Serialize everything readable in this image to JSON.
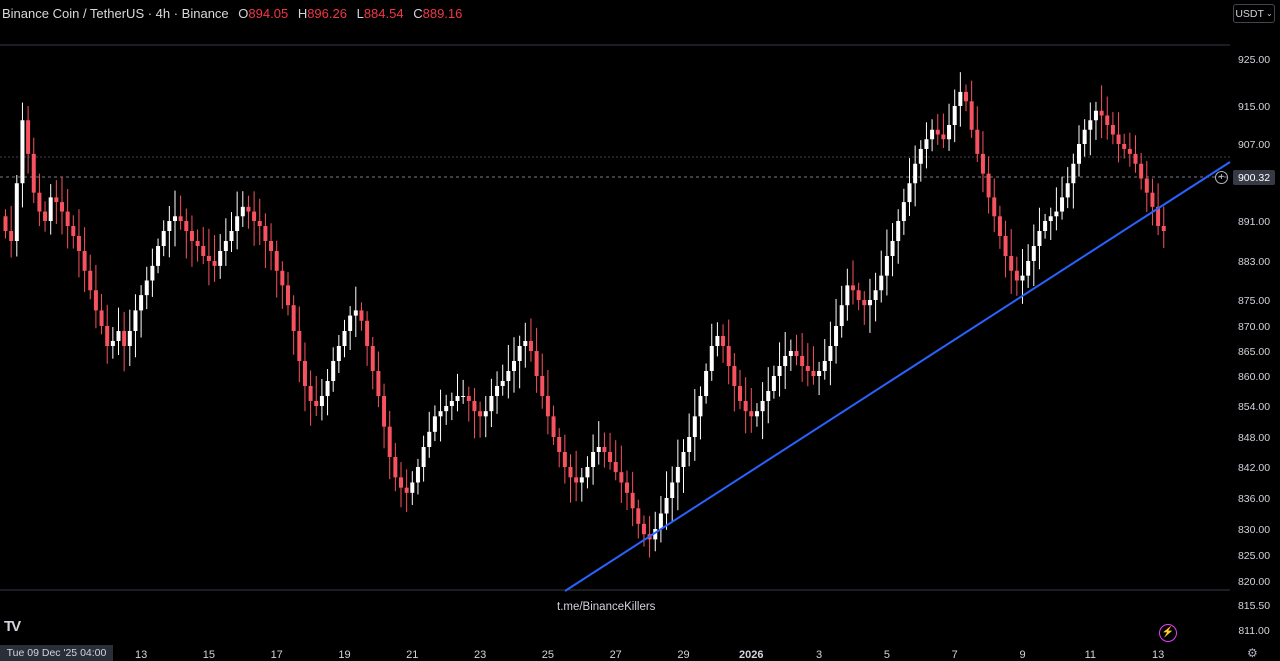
{
  "header": {
    "symbol": "Binance Coin / TetherUS · 4h · Binance",
    "o_label": "O",
    "o_value": "894.05",
    "h_label": "H",
    "h_value": "896.26",
    "l_label": "L",
    "l_value": "884.54",
    "c_label": "C",
    "c_value": "889.16"
  },
  "unit_button": {
    "label": "USDT"
  },
  "current_price": "900.32",
  "crosshair_date": "Tue 09 Dec '25   04:00",
  "watermark": "t.me/BinanceKillers",
  "logo": "TV",
  "colors": {
    "up": "#ffffff",
    "down": "#f7525f",
    "trendline": "#2962ff",
    "background": "#000000"
  },
  "chart_data": {
    "type": "candlestick",
    "y_ticks": [
      925,
      915,
      907,
      900.32,
      891,
      883,
      875,
      870,
      865,
      860,
      854,
      848,
      842,
      836,
      830,
      825,
      820,
      815.5,
      811
    ],
    "y_tick_labels": [
      "925.00",
      "915.00",
      "907.00",
      "",
      "891.00",
      "883.00",
      "875.00",
      "870.00",
      "865.00",
      "860.00",
      "854.00",
      "848.00",
      "842.00",
      "836.00",
      "830.00",
      "825.00",
      "820.00",
      "815.50",
      "811.00"
    ],
    "x_tick_labels": [
      "13",
      "15",
      "17",
      "19",
      "21",
      "23",
      "25",
      "27",
      "29",
      "2026",
      "3",
      "5",
      "7",
      "9",
      "11",
      "13"
    ],
    "x_tick_bars": [
      24,
      36,
      48,
      60,
      72,
      84,
      96,
      108,
      120,
      132,
      144,
      156,
      168,
      180,
      192,
      204
    ],
    "bar_count": 206,
    "close": [
      889,
      887,
      899,
      912,
      905,
      897,
      893,
      891,
      896,
      895,
      893,
      890,
      888,
      885,
      881,
      877,
      873,
      870,
      866,
      867,
      869,
      866,
      869,
      873,
      876,
      879,
      882,
      886,
      889,
      891,
      892,
      891,
      889,
      887,
      886,
      884,
      883,
      882,
      885,
      887,
      889,
      892,
      894,
      893,
      891,
      890,
      887,
      885,
      881,
      878,
      874,
      869,
      863,
      858,
      855,
      854,
      856,
      859,
      863,
      866,
      869,
      872,
      873,
      871,
      866,
      861,
      856,
      850,
      844,
      840,
      838,
      837,
      839,
      842,
      846,
      849,
      852,
      853,
      854,
      855,
      856,
      856,
      855,
      853,
      852,
      853,
      856,
      858,
      859,
      861,
      863,
      866,
      867,
      865,
      860,
      856,
      852,
      848,
      845,
      842,
      840,
      839,
      840,
      842,
      845,
      846,
      845,
      843,
      841,
      839,
      837,
      834,
      831,
      829,
      828,
      830,
      833,
      836,
      839,
      842,
      845,
      848,
      852,
      856,
      861,
      866,
      868,
      866,
      862,
      858,
      855,
      853,
      852,
      853,
      855,
      857,
      860,
      862,
      864,
      865,
      864,
      862,
      861,
      860,
      861,
      863,
      866,
      870,
      874,
      878,
      877,
      875,
      874,
      875,
      877,
      880,
      884,
      887,
      891,
      895,
      899,
      903,
      906,
      908,
      910,
      909,
      908,
      911,
      915,
      918,
      916,
      910,
      905,
      901,
      896,
      892,
      888,
      884,
      881,
      879,
      880,
      883,
      886,
      889,
      891,
      892,
      893,
      896,
      899,
      903,
      907,
      910,
      912,
      914,
      913,
      911,
      909,
      907,
      906,
      905,
      903,
      900,
      897,
      894,
      890,
      889
    ],
    "price_min": 811,
    "price_max": 925
  },
  "trendline": {
    "x1": 565,
    "y1": 591,
    "x2": 1230,
    "y2": 162
  }
}
